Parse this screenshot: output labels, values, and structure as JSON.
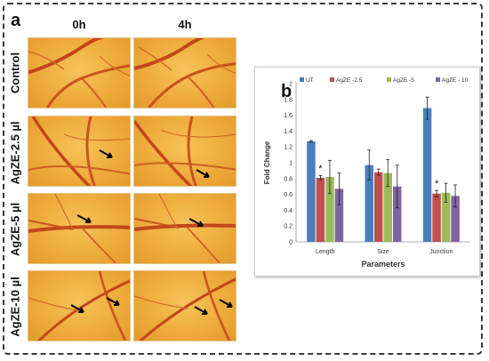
{
  "panels": {
    "a_label": "a",
    "b_label": "b",
    "columns": [
      "0h",
      "4h"
    ],
    "rows": [
      "Control",
      "AgZE-2.5 µl",
      "AgZE-5 µl",
      "AgZE-10 µl"
    ]
  },
  "chart_data": {
    "type": "bar",
    "title": "",
    "xlabel": "Parameters",
    "ylabel": "Fold Change",
    "ylim": [
      0,
      2
    ],
    "yticks": [
      "0",
      "0.2",
      "0.4",
      "0.6",
      "0.8",
      "1",
      "1.2",
      "1.4",
      "1.6",
      "1.8",
      "2"
    ],
    "categories": [
      "Length",
      "Size",
      "Junction"
    ],
    "legend_position": "top",
    "series": [
      {
        "name": "UT",
        "color": "#4a7ebb",
        "values": [
          1.27,
          0.97,
          1.69
        ],
        "errors": [
          0.01,
          0.19,
          0.14
        ]
      },
      {
        "name": "AgZE -2.5",
        "color": "#c0504d",
        "values": [
          0.81,
          0.88,
          0.61
        ],
        "errors": [
          0.03,
          0.04,
          0.04
        ]
      },
      {
        "name": "AgZE -5",
        "color": "#9bbb59",
        "values": [
          0.82,
          0.87,
          0.62
        ],
        "errors": [
          0.21,
          0.17,
          0.12
        ]
      },
      {
        "name": "AgZE - 10",
        "color": "#8064a2",
        "values": [
          0.67,
          0.7,
          0.58
        ],
        "errors": [
          0.2,
          0.27,
          0.14
        ]
      }
    ],
    "annotations": [
      "*",
      "*"
    ]
  }
}
